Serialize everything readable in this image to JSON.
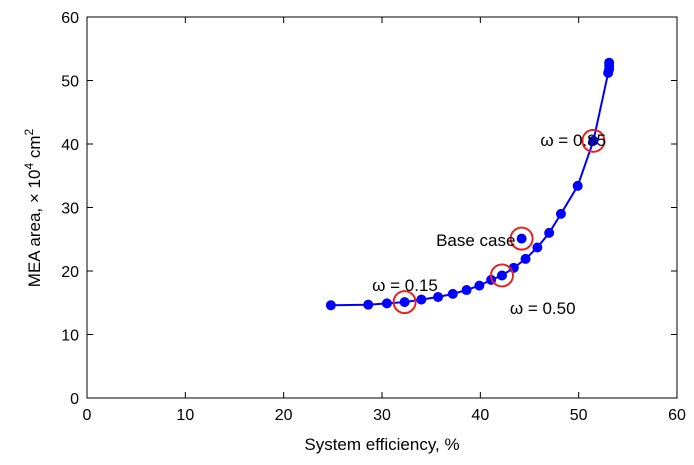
{
  "chart_data": {
    "type": "scatter",
    "xlabel": "System efficiency, %",
    "ylabel": {
      "prefix": "MEA area, ",
      "times": "×",
      "ten": " 10",
      "exp": "4",
      "unit": " cm",
      "unit_exp": "2"
    },
    "xlim": [
      0,
      60
    ],
    "ylim": [
      0,
      60
    ],
    "xticks": [
      0,
      10,
      20,
      30,
      40,
      50,
      60
    ],
    "yticks": [
      0,
      10,
      20,
      30,
      40,
      50,
      60
    ],
    "grid": false,
    "series": [
      {
        "color": "#0000ff",
        "points": [
          [
            24.8,
            14.6
          ],
          [
            28.6,
            14.7
          ],
          [
            30.5,
            14.9
          ],
          [
            32.3,
            15.1
          ],
          [
            34.0,
            15.5
          ],
          [
            35.7,
            15.9
          ],
          [
            37.2,
            16.4
          ],
          [
            38.6,
            17.0
          ],
          [
            39.9,
            17.7
          ],
          [
            41.1,
            18.6
          ],
          [
            42.2,
            19.3
          ],
          [
            43.4,
            20.5
          ],
          [
            44.6,
            21.9
          ],
          [
            45.8,
            23.7
          ],
          [
            47.0,
            26.0
          ],
          [
            48.2,
            29.0
          ],
          [
            49.9,
            33.4
          ],
          [
            51.5,
            40.5
          ],
          [
            53.0,
            51.2
          ],
          [
            53.1,
            51.8
          ],
          [
            53.1,
            52.3
          ],
          [
            53.1,
            52.8
          ]
        ]
      }
    ],
    "extra_points": [
      {
        "x": 44.2,
        "y": 25.1
      }
    ],
    "highlighted": [
      {
        "x": 32.3,
        "y": 15.1
      },
      {
        "x": 42.2,
        "y": 19.3
      },
      {
        "x": 51.5,
        "y": 40.5
      },
      {
        "x": 44.2,
        "y": 25.1
      }
    ],
    "highlight_color": "#e8221f",
    "annotations": [
      {
        "text": "ω = 0.15",
        "x": 29.0,
        "y": 17.8,
        "anchor": "start"
      },
      {
        "text": "ω = 0.50",
        "x": 43.0,
        "y": 14.2,
        "anchor": "start"
      },
      {
        "text": "Base case",
        "x": 35.5,
        "y": 24.9,
        "anchor": "start"
      },
      {
        "text": "ω = 0.85",
        "x": 46.1,
        "y": 40.6,
        "anchor": "start"
      }
    ]
  }
}
